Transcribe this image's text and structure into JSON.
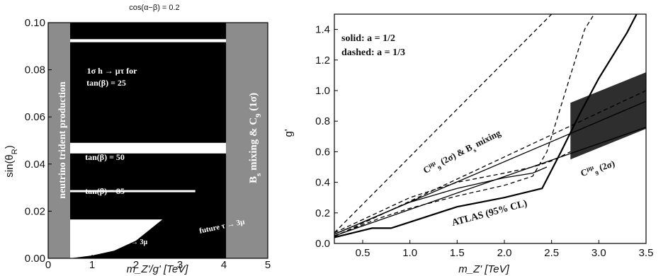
{
  "chart_data": [
    {
      "type": "area",
      "title": "cos(α−β) = 0.2",
      "xlabel": "m_Z'/g' [TeV]",
      "xlim": [
        0,
        5
      ],
      "ylim": [
        0,
        0.1
      ],
      "xticks": [
        "0",
        "1",
        "2",
        "3",
        "4",
        "5"
      ],
      "yticks": [
        "0.00",
        "0.02",
        "0.04",
        "0.06",
        "0.08",
        "0.10"
      ],
      "ylabel_main": "sin(θ",
      "ylabel_sub": "R",
      "ylabel_tail": ")",
      "colors": {
        "excluded": "#000000",
        "hatched": "#8c8c8c",
        "allowed": "#ffffff"
      },
      "bands": {
        "left_hatched_x": [
          0,
          0.5
        ],
        "right_hatched_x": [
          4.05,
          5
        ],
        "black_top": [
          0.093,
          0.1
        ],
        "white_gap_1": [
          0.0917,
          0.093
        ],
        "black_mid": [
          0.049,
          0.0917
        ],
        "white_gap_2": [
          0.0445,
          0.049
        ],
        "black_low": [
          0.0,
          0.0445
        ],
        "white_line_y": 0.0285,
        "white_line_x": [
          0.5,
          3.35
        ],
        "white_corner": [
          0.0165,
          0.025
        ]
      },
      "tau3mu_curve": {
        "x": [
          0.5,
          1.0,
          1.5,
          2.0,
          2.6
        ],
        "y": [
          0.0,
          0.0012,
          0.0032,
          0.0075,
          0.0165
        ]
      },
      "annotations": {
        "htau_1": "1σ h → μτ for",
        "htau_2": "tan(β) = 25",
        "tb50": "tan(β) = 50",
        "tb85": "tan(β) = 85",
        "tau3mu": "τ → 3μ",
        "future_tau3mu": "future τ → 3μ",
        "trident": "neutrino trident production",
        "bs_mixing": "B",
        "bs_sub": "s",
        "bs_mid": " mixing & C",
        "c9_sub": "9",
        "bs_tail": " (1σ)"
      }
    },
    {
      "type": "line",
      "xlabel": "m_Z' [TeV]",
      "ylabel": "g'",
      "xlim": [
        0.2,
        3.5
      ],
      "ylim": [
        0,
        1.5
      ],
      "xticks": [
        "0.5",
        "1.0",
        "1.5",
        "2.0",
        "2.5",
        "3.0",
        "3.5"
      ],
      "yticks": [
        "0.0",
        "0.2",
        "0.4",
        "0.6",
        "0.8",
        "1.0",
        "1.2",
        "1.4"
      ],
      "legend": {
        "solid": "solid: a = 1/2",
        "dashed": "dashed: a = 1/3"
      },
      "labels": {
        "c9_bs_main": "C",
        "c9_bs_sup": "μμ",
        "c9_bs_sub": "9",
        "c9_bs_tail": " (2σ) & B",
        "c9_bs_sub2": "s",
        "c9_bs_end": " mixing",
        "c9_main": "C",
        "c9_sup": "μμ",
        "c9_sub": "9",
        "c9_tail": " (2σ)",
        "atlas": "ATLAS (95% CL)"
      },
      "series": [
        {
          "style": "solid",
          "x": [
            0.2,
            3.5
          ],
          "y": [
            0.06,
            0.93
          ]
        },
        {
          "style": "dashed",
          "x": [
            0.2,
            2.5
          ],
          "y": [
            0.07,
            1.5
          ]
        },
        {
          "style": "solid",
          "x": [
            0.2,
            3.5
          ],
          "y": [
            0.05,
            0.76
          ]
        },
        {
          "style": "dashed",
          "x": [
            0.2,
            3.5
          ],
          "y": [
            0.045,
            1.0
          ]
        },
        {
          "style": "solid",
          "x": [
            0.2,
            0.6,
            0.8,
            1.0,
            1.5,
            2.0,
            2.4,
            2.6,
            2.8,
            3.0,
            3.3,
            3.4
          ],
          "y": [
            0.04,
            0.1,
            0.1,
            0.14,
            0.24,
            0.3,
            0.36,
            0.6,
            0.85,
            1.08,
            1.38,
            1.5
          ]
        },
        {
          "style": "dashed",
          "x": [
            0.2,
            0.7,
            1.0,
            1.5,
            2.0,
            2.3,
            2.45,
            2.6,
            2.75,
            2.85,
            2.95
          ],
          "y": [
            0.05,
            0.17,
            0.23,
            0.31,
            0.38,
            0.44,
            0.6,
            0.9,
            1.2,
            1.4,
            1.5
          ]
        },
        {
          "style": "solid",
          "x": [
            0.2,
            1.0,
            1.5,
            2.0,
            2.3,
            2.45
          ],
          "y": [
            0.06,
            0.27,
            0.36,
            0.43,
            0.46,
            0.5
          ]
        },
        {
          "style": "dashed",
          "x": [
            0.2,
            1.0,
            1.5,
            2.0,
            2.3,
            2.5,
            2.7
          ],
          "y": [
            0.07,
            0.3,
            0.4,
            0.46,
            0.5,
            0.54,
            0.6
          ]
        }
      ],
      "shaded_region": {
        "x": [
          2.7,
          3.5,
          3.5,
          2.7
        ],
        "y": [
          0.55,
          0.75,
          1.12,
          0.92
        ]
      }
    }
  ]
}
